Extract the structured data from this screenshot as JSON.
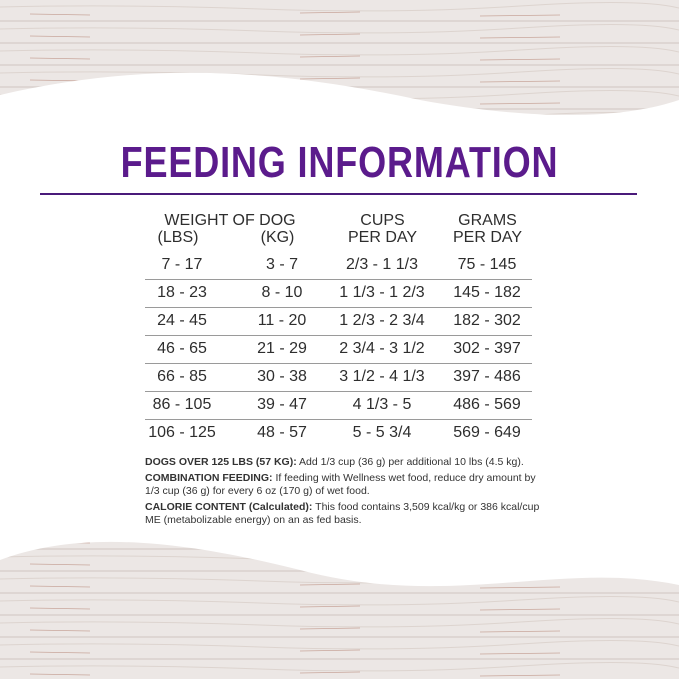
{
  "title": "FEEDING INFORMATION",
  "colors": {
    "accent": "#5b1b8c",
    "text": "#2e2e2e"
  },
  "table": {
    "headers": {
      "weight": "WEIGHT OF DOG",
      "lbs": "(LBS)",
      "kg": "(KG)",
      "cups_1": "CUPS",
      "cups_2": "PER DAY",
      "grams_1": "GRAMS",
      "grams_2": "PER DAY"
    },
    "rows": [
      {
        "lbs": "7 - 17",
        "kg": "3 - 7",
        "cups": "2/3 - 1 1/3",
        "grams": "75 - 145"
      },
      {
        "lbs": "18 - 23",
        "kg": "8 - 10",
        "cups": "1 1/3 - 1 2/3",
        "grams": "145 - 182"
      },
      {
        "lbs": "24 - 45",
        "kg": "11 - 20",
        "cups": "1 2/3 - 2 3/4",
        "grams": "182 - 302"
      },
      {
        "lbs": "46 - 65",
        "kg": "21 - 29",
        "cups": "2 3/4 - 3 1/2",
        "grams": "302 - 397"
      },
      {
        "lbs": "66 - 85",
        "kg": "30 - 38",
        "cups": "3 1/2 - 4 1/3",
        "grams": "397 - 486"
      },
      {
        "lbs": "86 - 105",
        "kg": "39 - 47",
        "cups": "4 1/3 - 5",
        "grams": "486 - 569"
      },
      {
        "lbs": "106 - 125",
        "kg": "48 - 57",
        "cups": "5 - 5 3/4",
        "grams": "569 - 649"
      }
    ]
  },
  "notes": [
    {
      "label": "DOGS OVER 125 LBS (57 KG):",
      "text": " Add 1/3 cup (36 g) per additional 10 lbs (4.5 kg)."
    },
    {
      "label": "COMBINATION FEEDING:",
      "text": " If feeding with Wellness wet food, reduce dry amount by 1/3 cup (36 g) for every 6 oz (170 g) of wet food."
    },
    {
      "label": "CALORIE CONTENT (Calculated):",
      "text": " This food contains 3,509 kcal/kg or 386 kcal/cup ME (metabolizable energy) on an as fed basis."
    }
  ]
}
